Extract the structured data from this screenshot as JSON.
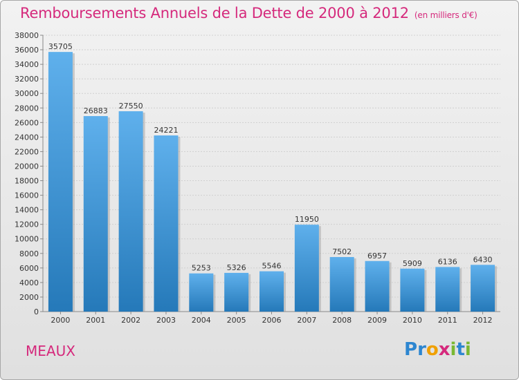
{
  "header": {
    "title": "Remboursements Annuels de la Dette de 2000 à 2012",
    "subtitle": "(en milliers d'€)"
  },
  "footer": {
    "city": "MEAUX",
    "logo_text": "Proxiti"
  },
  "colors": {
    "title": "#d5297c",
    "bar_top": "#5fb0ec",
    "bar_bottom": "#2579b9"
  },
  "chart_data": {
    "type": "bar",
    "title": "Remboursements Annuels de la Dette de 2000 à 2012",
    "subtitle": "(en milliers d'€)",
    "xlabel": "",
    "ylabel": "",
    "categories": [
      "2000",
      "2001",
      "2002",
      "2003",
      "2004",
      "2005",
      "2006",
      "2007",
      "2008",
      "2009",
      "2010",
      "2011",
      "2012"
    ],
    "values": [
      35705,
      26883,
      27550,
      24221,
      5253,
      5326,
      5546,
      11950,
      7502,
      6957,
      5909,
      6136,
      6430
    ],
    "ylim": [
      0,
      38000
    ],
    "yticks": [
      0,
      2000,
      4000,
      6000,
      8000,
      10000,
      12000,
      14000,
      16000,
      18000,
      20000,
      22000,
      24000,
      26000,
      28000,
      30000,
      32000,
      34000,
      36000,
      38000
    ],
    "grid": true,
    "data_labels": true
  }
}
